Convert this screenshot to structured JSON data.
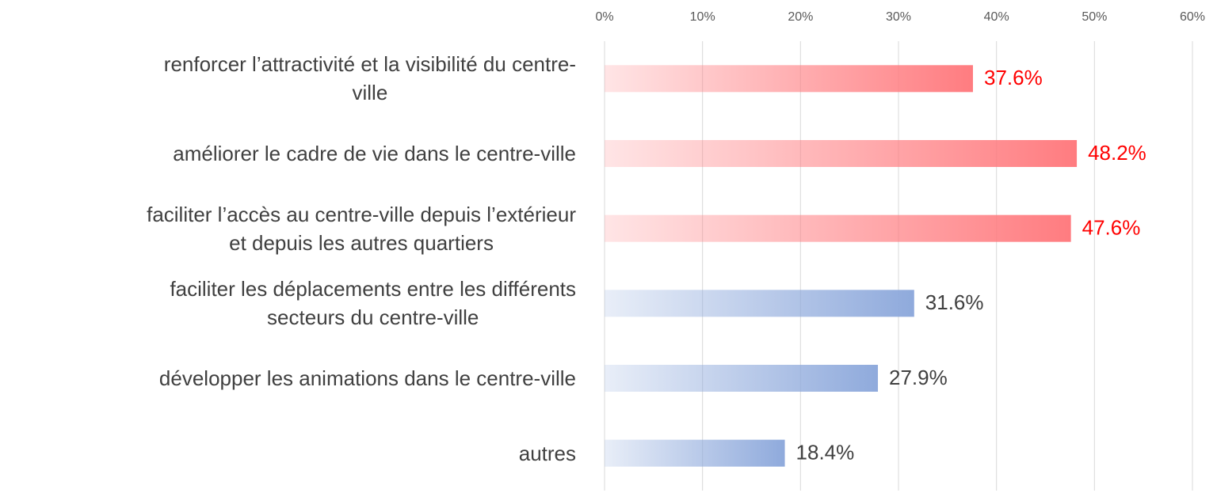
{
  "chart_data": {
    "type": "bar",
    "orientation": "horizontal",
    "categories": [
      "renforcer l’attractivité et la visibilité du centre-\nville",
      "améliorer le cadre de vie dans le centre-ville",
      "faciliter l’accès au centre-ville depuis l’extérieur\net depuis les autres quartiers",
      "faciliter les déplacements entre les différents\nsecteurs du centre-ville",
      "développer les animations dans le centre-ville",
      "autres"
    ],
    "values": [
      37.6,
      48.2,
      47.6,
      31.6,
      27.9,
      18.4
    ],
    "value_labels": [
      "37.6%",
      "48.2%",
      "47.6%",
      "31.6%",
      "27.9%",
      "18.4%"
    ],
    "colors": [
      "#ff7c80",
      "#ff7c80",
      "#ff7c80",
      "#8faadc",
      "#8faadc",
      "#8faadc"
    ],
    "label_colors": [
      "#ff0000",
      "#ff0000",
      "#ff0000",
      "#404040",
      "#404040",
      "#404040"
    ],
    "xlim": [
      0,
      60
    ],
    "xticks": [
      {
        "value": 0,
        "label": "0%"
      },
      {
        "value": 10,
        "label": "10%"
      },
      {
        "value": 20,
        "label": "20%"
      },
      {
        "value": 30,
        "label": "30%"
      },
      {
        "value": 40,
        "label": "40%"
      },
      {
        "value": 50,
        "label": "50%"
      },
      {
        "value": 60,
        "label": "60%"
      }
    ],
    "grid": true
  }
}
